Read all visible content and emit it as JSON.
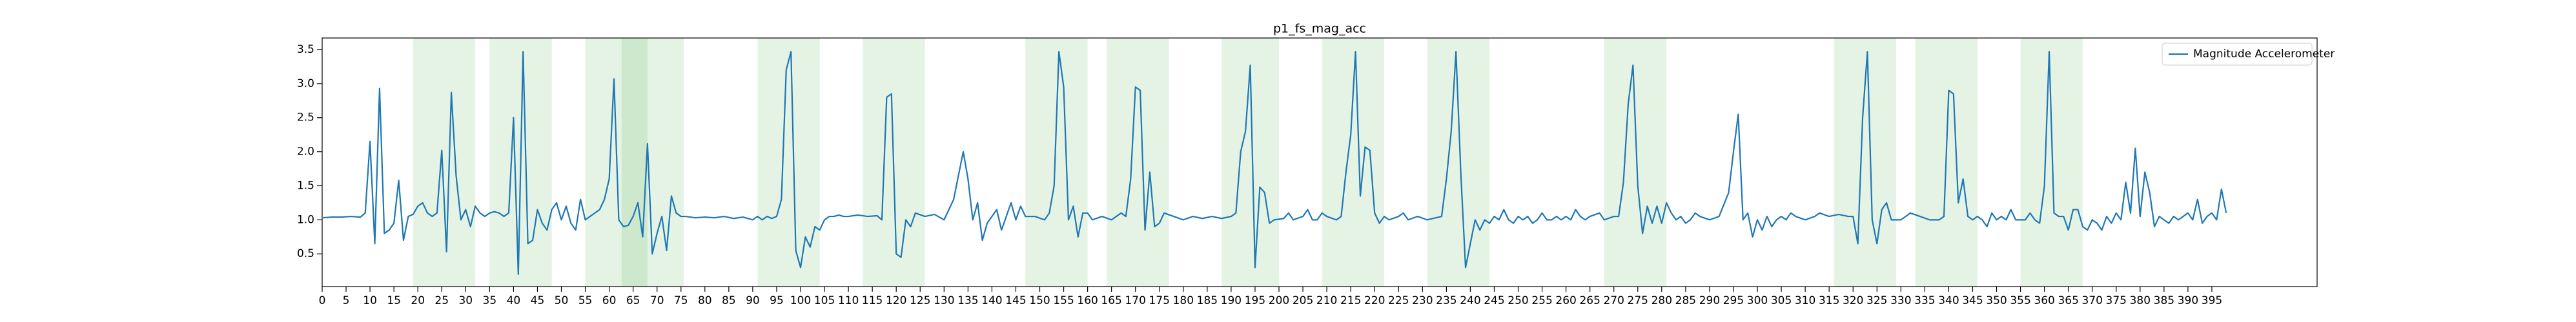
{
  "chart_data": {
    "type": "line",
    "title": "p1_fs_mag_acc",
    "xlim": [
      0,
      417
    ],
    "ylim": [
      0.02,
      3.67
    ],
    "xticks": [
      0,
      5,
      10,
      15,
      20,
      25,
      30,
      35,
      40,
      45,
      50,
      55,
      60,
      65,
      70,
      75,
      80,
      85,
      90,
      95,
      100,
      105,
      110,
      115,
      120,
      125,
      130,
      135,
      140,
      145,
      150,
      155,
      160,
      165,
      170,
      175,
      180,
      185,
      190,
      195,
      200,
      205,
      210,
      215,
      220,
      225,
      230,
      235,
      240,
      245,
      250,
      255,
      260,
      265,
      270,
      275,
      280,
      285,
      290,
      295,
      300,
      305,
      310,
      315,
      320,
      325,
      330,
      335,
      340,
      345,
      350,
      355,
      360,
      365,
      370,
      375,
      380,
      385,
      390,
      395
    ],
    "yticks": [
      0.5,
      {
        "value": 1.0,
        "label": "1.0"
      },
      1.5,
      {
        "value": 2.0,
        "label": "2.0"
      },
      2.5,
      {
        "value": 3.0,
        "label": "3.0"
      },
      3.5
    ],
    "legend": "upper right",
    "span_color": "#2ca02c",
    "spans": [
      [
        19,
        32
      ],
      [
        35,
        48
      ],
      [
        55,
        68
      ],
      [
        62.6,
        75.6
      ],
      [
        91,
        104
      ],
      [
        113,
        126
      ],
      [
        147,
        160
      ],
      [
        164,
        177
      ],
      [
        188,
        200
      ],
      [
        209,
        222
      ],
      [
        231,
        244
      ],
      [
        268,
        281
      ],
      [
        316,
        329
      ],
      [
        333,
        346
      ],
      [
        355,
        368
      ]
    ],
    "series": [
      {
        "name": "Magnitude Accelerometer",
        "color": "#1f77b4",
        "x": [
          0,
          2,
          4,
          6,
          8,
          9,
          10,
          11,
          12,
          13,
          14,
          15,
          16,
          17,
          18,
          19,
          20,
          21,
          22,
          23,
          24,
          25,
          26,
          27,
          28,
          29,
          30,
          31,
          32,
          33,
          34,
          35,
          36,
          37,
          38,
          39,
          40,
          41,
          42,
          43,
          44,
          45,
          46,
          47,
          48,
          49,
          50,
          51,
          52,
          53,
          54,
          55,
          56,
          57,
          58,
          59,
          60,
          61,
          62,
          63,
          64,
          65,
          66,
          67,
          68,
          69,
          70,
          71,
          72,
          73,
          74,
          75,
          76,
          78,
          80,
          82,
          84,
          86,
          88,
          90,
          91,
          92,
          93,
          94,
          95,
          96,
          97,
          98,
          99,
          100,
          101,
          102,
          103,
          104,
          105,
          106,
          107,
          108,
          109,
          110,
          112,
          114,
          116,
          117,
          118,
          119,
          120,
          121,
          122,
          123,
          124,
          126,
          128,
          130,
          132,
          134,
          135,
          136,
          137,
          138,
          139,
          140,
          141,
          142,
          143,
          144,
          145,
          146,
          147,
          149,
          151,
          152,
          153,
          154,
          155,
          156,
          157,
          158,
          159,
          160,
          161,
          163,
          165,
          166,
          167,
          168,
          169,
          170,
          171,
          172,
          173,
          174,
          175,
          176,
          178,
          180,
          182,
          184,
          186,
          188,
          190,
          191,
          192,
          193,
          194,
          195,
          196,
          197,
          198,
          199,
          201,
          202,
          203,
          205,
          206,
          207,
          208,
          209,
          210,
          212,
          213,
          214,
          215,
          216,
          217,
          218,
          219,
          220,
          221,
          222,
          223,
          225,
          226,
          227,
          229,
          231,
          234,
          235,
          236,
          237,
          238,
          239,
          240,
          241,
          242,
          243,
          244,
          245,
          246,
          247,
          248,
          249,
          250,
          251,
          252,
          253,
          254,
          255,
          256,
          257,
          258,
          259,
          260,
          261,
          262,
          263,
          264,
          265,
          267,
          268,
          270,
          271,
          272,
          273,
          274,
          275,
          276,
          277,
          278,
          279,
          280,
          281,
          282,
          283,
          284,
          285,
          286,
          287,
          288,
          290,
          292,
          294,
          295,
          296,
          297,
          298,
          299,
          300,
          301,
          302,
          303,
          304,
          305,
          306,
          307,
          308,
          310,
          312,
          313,
          315,
          317,
          319,
          320,
          321,
          322,
          323,
          324,
          325,
          326,
          327,
          328,
          330,
          332,
          334,
          336,
          338,
          339,
          340,
          341,
          342,
          343,
          344,
          345,
          346,
          347,
          348,
          349,
          350,
          351,
          352,
          353,
          354,
          355,
          356,
          357,
          358,
          359,
          360,
          361,
          362,
          363,
          364,
          365,
          366,
          367,
          368,
          369,
          370,
          371,
          372,
          373,
          374,
          375,
          376,
          377,
          378,
          379,
          380,
          381,
          382,
          383,
          384,
          385,
          386,
          387,
          388,
          389,
          390,
          391,
          392,
          393,
          394,
          395,
          396,
          397,
          398
        ],
        "values": [
          1.03,
          1.04,
          1.04,
          1.05,
          1.04,
          1.1,
          2.15,
          0.65,
          2.93,
          0.8,
          0.85,
          0.95,
          1.58,
          0.7,
          1.05,
          1.08,
          1.2,
          1.25,
          1.1,
          1.05,
          1.1,
          2.02,
          0.53,
          2.87,
          1.65,
          1.0,
          1.15,
          0.9,
          1.2,
          1.1,
          1.05,
          1.1,
          1.12,
          1.1,
          1.05,
          1.1,
          2.5,
          0.2,
          3.47,
          0.65,
          0.7,
          1.15,
          0.95,
          0.85,
          1.15,
          1.25,
          1.0,
          1.2,
          0.95,
          0.85,
          1.3,
          1.0,
          1.05,
          1.1,
          1.15,
          1.3,
          1.6,
          3.07,
          1.0,
          0.9,
          0.92,
          1.05,
          1.25,
          0.75,
          2.12,
          0.5,
          0.8,
          1.05,
          0.55,
          1.35,
          1.1,
          1.05,
          1.05,
          1.03,
          1.04,
          1.03,
          1.05,
          1.02,
          1.04,
          1.0,
          1.05,
          1.0,
          1.05,
          1.02,
          1.05,
          1.3,
          3.2,
          3.47,
          0.55,
          0.3,
          0.75,
          0.6,
          0.9,
          0.85,
          1.0,
          1.05,
          1.05,
          1.07,
          1.05,
          1.05,
          1.07,
          1.05,
          1.06,
          1.0,
          2.8,
          2.85,
          0.5,
          0.45,
          1.0,
          0.9,
          1.1,
          1.05,
          1.08,
          1.0,
          1.3,
          2.0,
          1.6,
          1.0,
          1.25,
          0.7,
          0.95,
          1.05,
          1.15,
          0.85,
          1.05,
          1.25,
          1.0,
          1.2,
          1.05,
          1.05,
          1.0,
          1.1,
          1.5,
          3.47,
          2.95,
          1.0,
          1.2,
          0.75,
          1.1,
          1.1,
          1.0,
          1.05,
          1.0,
          1.05,
          1.1,
          1.05,
          1.6,
          2.95,
          2.9,
          0.85,
          1.7,
          0.9,
          0.95,
          1.1,
          1.05,
          1.0,
          1.05,
          1.02,
          1.05,
          1.02,
          1.05,
          1.1,
          2.0,
          2.3,
          3.27,
          0.3,
          1.48,
          1.4,
          0.95,
          1.0,
          1.02,
          1.1,
          1.0,
          1.05,
          1.15,
          1.0,
          1.0,
          1.1,
          1.05,
          1.0,
          1.05,
          1.7,
          2.25,
          3.47,
          1.35,
          2.07,
          2.02,
          1.1,
          0.95,
          1.05,
          1.0,
          1.05,
          1.1,
          1.0,
          1.05,
          1.0,
          1.05,
          1.6,
          2.3,
          3.47,
          1.7,
          0.3,
          0.65,
          1.0,
          0.85,
          1.0,
          0.95,
          1.05,
          1.0,
          1.15,
          1.0,
          0.95,
          1.05,
          1.0,
          1.05,
          0.95,
          1.0,
          1.1,
          1.0,
          1.0,
          1.05,
          1.0,
          1.05,
          1.0,
          1.15,
          1.05,
          1.0,
          1.05,
          1.1,
          1.0,
          1.05,
          1.05,
          1.55,
          2.7,
          3.27,
          1.5,
          0.8,
          1.2,
          0.95,
          1.2,
          0.95,
          1.25,
          1.1,
          1.0,
          1.05,
          0.95,
          1.0,
          1.1,
          1.05,
          1.0,
          1.05,
          1.4,
          2.0,
          2.55,
          1.0,
          1.1,
          0.75,
          1.0,
          0.85,
          1.05,
          0.9,
          1.0,
          1.05,
          1.0,
          1.1,
          1.05,
          1.0,
          1.05,
          1.1,
          1.05,
          1.08,
          1.05,
          1.05,
          0.65,
          2.5,
          3.47,
          1.0,
          0.65,
          1.15,
          1.25,
          1.0,
          1.0,
          1.1,
          1.05,
          1.0,
          1.0,
          1.05,
          2.9,
          2.85,
          1.25,
          1.6,
          1.05,
          1.0,
          1.05,
          1.0,
          0.9,
          1.1,
          1.0,
          1.05,
          1.0,
          1.15,
          1.0,
          1.0,
          1.0,
          1.1,
          1.0,
          0.95,
          1.5,
          3.47,
          1.1,
          1.05,
          1.05,
          0.85,
          1.15,
          1.15,
          0.9,
          0.85,
          1.0,
          0.95,
          0.85,
          1.05,
          0.95,
          1.1,
          1.0,
          1.55,
          1.1,
          2.05,
          1.05,
          1.7,
          1.4,
          0.9,
          1.05,
          1.0,
          0.95,
          1.05,
          1.0,
          1.05,
          1.1,
          1.0,
          1.3,
          0.95,
          1.05,
          1.1,
          1.0,
          1.45,
          1.1
        ]
      }
    ]
  }
}
